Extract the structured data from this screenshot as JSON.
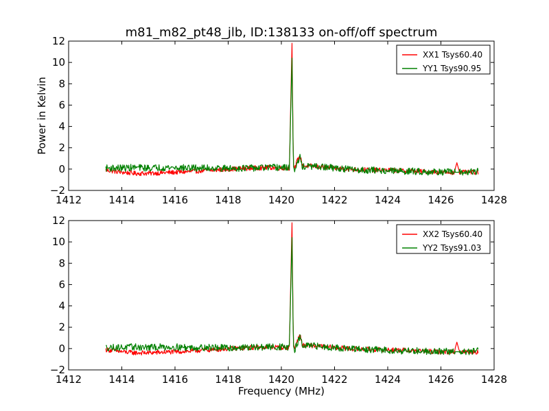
{
  "title": "m81_m82_pt48_jlb, ID:138133 on-off/off spectrum",
  "colors": {
    "xx": "#ff0000",
    "yy": "#008000",
    "axis": "#000000"
  },
  "chart_data": [
    {
      "type": "line",
      "ylabel": "Power in Kelvin",
      "xlabel": "",
      "xlim": [
        1412,
        1428
      ],
      "ylim": [
        -2,
        12
      ],
      "xticks": [
        "1412",
        "1414",
        "1416",
        "1418",
        "1420",
        "1422",
        "1424",
        "1426",
        "1428"
      ],
      "yticks": [
        "−2",
        "0",
        "2",
        "4",
        "6",
        "8",
        "10",
        "12"
      ],
      "legend_position": "top-right",
      "series": [
        {
          "name": "XX1 Tsys60.40",
          "color": "#ff0000",
          "x": [
            1413.4,
            1414.0,
            1414.5,
            1415.0,
            1415.5,
            1416.0,
            1416.5,
            1417.0,
            1417.5,
            1418.0,
            1418.5,
            1419.0,
            1419.5,
            1420.0,
            1420.3,
            1420.4,
            1420.45,
            1420.5,
            1420.6,
            1420.7,
            1420.8,
            1421.0,
            1421.5,
            1422.0,
            1422.5,
            1423.0,
            1423.5,
            1424.0,
            1424.5,
            1425.0,
            1425.5,
            1426.0,
            1426.5,
            1426.6,
            1426.7,
            1427.0,
            1427.4
          ],
          "y": [
            -0.1,
            -0.3,
            -0.4,
            -0.4,
            -0.35,
            -0.3,
            -0.25,
            -0.15,
            -0.1,
            0.0,
            0.05,
            0.1,
            0.15,
            0.1,
            0.1,
            11.8,
            0.5,
            0.0,
            0.8,
            1.2,
            0.3,
            0.3,
            0.2,
            0.1,
            0.0,
            -0.05,
            -0.1,
            -0.1,
            -0.15,
            -0.2,
            -0.25,
            -0.3,
            -0.3,
            0.6,
            -0.3,
            -0.3,
            -0.3
          ]
        },
        {
          "name": "YY1 Tsys90.95",
          "color": "#008000",
          "x": [
            1413.4,
            1414.0,
            1414.5,
            1415.0,
            1415.5,
            1416.0,
            1416.5,
            1417.0,
            1417.5,
            1418.0,
            1418.5,
            1419.0,
            1419.5,
            1420.0,
            1420.3,
            1420.4,
            1420.45,
            1420.5,
            1420.6,
            1420.7,
            1420.8,
            1421.0,
            1421.5,
            1422.0,
            1422.5,
            1423.0,
            1423.5,
            1424.0,
            1424.5,
            1425.0,
            1425.5,
            1426.0,
            1426.5,
            1427.0,
            1427.4
          ],
          "y": [
            0.1,
            0.1,
            0.15,
            0.1,
            0.15,
            0.15,
            0.1,
            0.1,
            0.1,
            0.05,
            0.1,
            0.1,
            0.15,
            0.15,
            0.1,
            10.4,
            0.3,
            -0.2,
            0.5,
            1.1,
            0.2,
            0.25,
            0.2,
            0.1,
            0.0,
            -0.1,
            -0.1,
            -0.15,
            -0.2,
            -0.2,
            -0.25,
            -0.25,
            -0.3,
            -0.3,
            -0.2
          ]
        }
      ]
    },
    {
      "type": "line",
      "ylabel": "",
      "xlabel": "Frequency (MHz)",
      "xlim": [
        1412,
        1428
      ],
      "ylim": [
        -2,
        12
      ],
      "xticks": [
        "1412",
        "1414",
        "1416",
        "1418",
        "1420",
        "1422",
        "1424",
        "1426",
        "1428"
      ],
      "yticks": [
        "−2",
        "0",
        "2",
        "4",
        "6",
        "8",
        "10",
        "12"
      ],
      "legend_position": "top-right",
      "series": [
        {
          "name": "XX2 Tsys60.40",
          "color": "#ff0000",
          "x": [
            1413.4,
            1414.0,
            1414.5,
            1415.0,
            1415.5,
            1416.0,
            1416.5,
            1417.0,
            1417.5,
            1418.0,
            1418.5,
            1419.0,
            1419.5,
            1420.0,
            1420.3,
            1420.4,
            1420.45,
            1420.5,
            1420.6,
            1420.7,
            1420.8,
            1421.0,
            1421.5,
            1422.0,
            1422.5,
            1423.0,
            1423.5,
            1424.0,
            1424.5,
            1425.0,
            1425.5,
            1426.0,
            1426.5,
            1426.6,
            1426.7,
            1427.0,
            1427.4
          ],
          "y": [
            -0.1,
            -0.3,
            -0.4,
            -0.4,
            -0.35,
            -0.3,
            -0.25,
            -0.15,
            -0.1,
            0.0,
            0.05,
            0.1,
            0.15,
            0.1,
            0.1,
            11.8,
            0.5,
            0.0,
            0.8,
            1.2,
            0.3,
            0.3,
            0.2,
            0.1,
            0.0,
            -0.05,
            -0.1,
            -0.1,
            -0.15,
            -0.2,
            -0.25,
            -0.3,
            -0.3,
            0.6,
            -0.3,
            -0.3,
            -0.3
          ]
        },
        {
          "name": "YY2 Tsys91.03",
          "color": "#008000",
          "x": [
            1413.4,
            1414.0,
            1414.5,
            1415.0,
            1415.5,
            1416.0,
            1416.5,
            1417.0,
            1417.5,
            1418.0,
            1418.5,
            1419.0,
            1419.5,
            1420.0,
            1420.3,
            1420.4,
            1420.45,
            1420.5,
            1420.6,
            1420.7,
            1420.8,
            1421.0,
            1421.5,
            1422.0,
            1422.5,
            1423.0,
            1423.5,
            1424.0,
            1424.5,
            1425.0,
            1425.5,
            1426.0,
            1426.5,
            1427.0,
            1427.4
          ],
          "y": [
            0.1,
            0.1,
            0.15,
            0.1,
            0.15,
            0.15,
            0.1,
            0.1,
            0.1,
            0.05,
            0.1,
            0.1,
            0.15,
            0.15,
            0.1,
            10.4,
            0.3,
            -0.2,
            0.5,
            1.1,
            0.2,
            0.25,
            0.2,
            0.1,
            0.0,
            -0.1,
            -0.1,
            -0.15,
            -0.2,
            -0.2,
            -0.25,
            -0.25,
            -0.3,
            -0.3,
            -0.2
          ]
        }
      ]
    }
  ]
}
